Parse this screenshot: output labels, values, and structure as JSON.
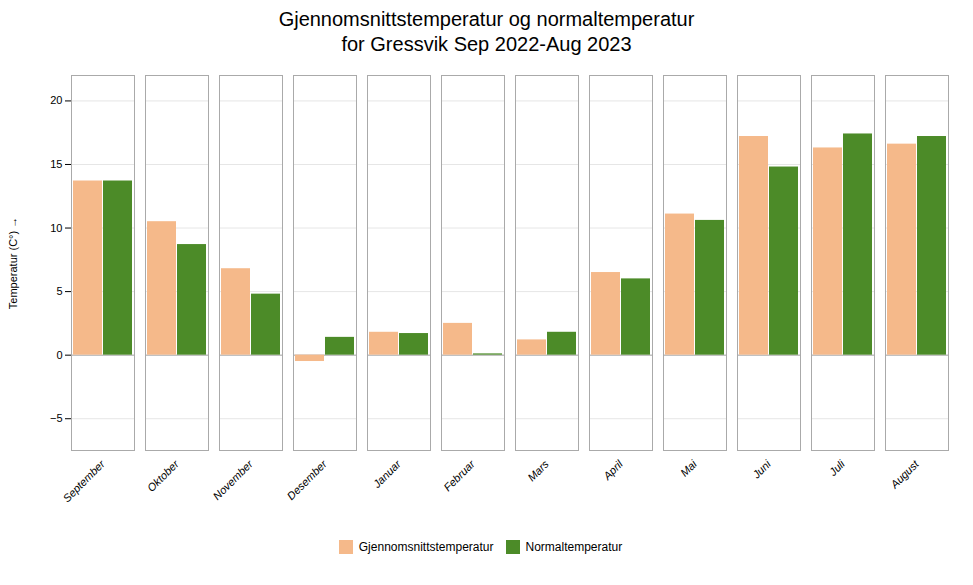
{
  "chart_data": {
    "type": "bar",
    "title": "Gjennomsnittstemperatur og normaltemperatur",
    "subtitle": "for Gressvik Sep 2022-Aug 2023",
    "ylabel": "Temperatur (C°)",
    "categories": [
      "September",
      "Oktober",
      "November",
      "Desember",
      "Januar",
      "Februar",
      "Mars",
      "April",
      "Mai",
      "Juni",
      "Juli",
      "August"
    ],
    "series": [
      {
        "name": "Gjennomsnittstemperatur",
        "color": "#F5B98A",
        "values": [
          13.7,
          10.5,
          6.8,
          -0.5,
          1.8,
          2.5,
          1.2,
          6.5,
          11.1,
          17.2,
          16.3,
          16.6
        ]
      },
      {
        "name": "Normaltemperatur",
        "color": "#4C8B28",
        "values": [
          13.7,
          8.7,
          4.8,
          1.4,
          1.7,
          0.1,
          1.8,
          6.0,
          10.6,
          14.8,
          17.4,
          17.2
        ]
      }
    ],
    "ylim": [
      -7.5,
      22
    ],
    "yticks": [
      -5,
      0,
      5,
      10,
      15,
      20
    ],
    "grid": true,
    "legend": "bottom"
  }
}
